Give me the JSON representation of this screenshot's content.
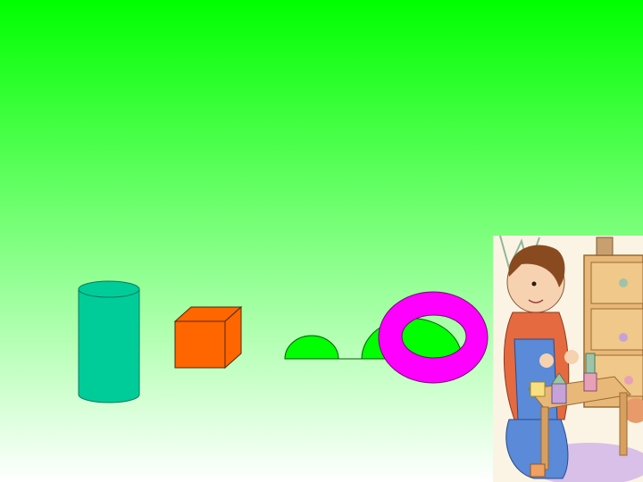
{
  "slide": {
    "background_top": "#00ff00",
    "background_bottom": "#ffffff",
    "shapes": {
      "blue_rectangle": "#0000ff",
      "magenta_rectangle": "#ff00ff",
      "cylinder": "#00cc99",
      "cube": "#ff6600",
      "hemisphere": "#00ff00",
      "ring": "#ff00ff"
    },
    "illustration": "boy-playing-with-blocks"
  }
}
